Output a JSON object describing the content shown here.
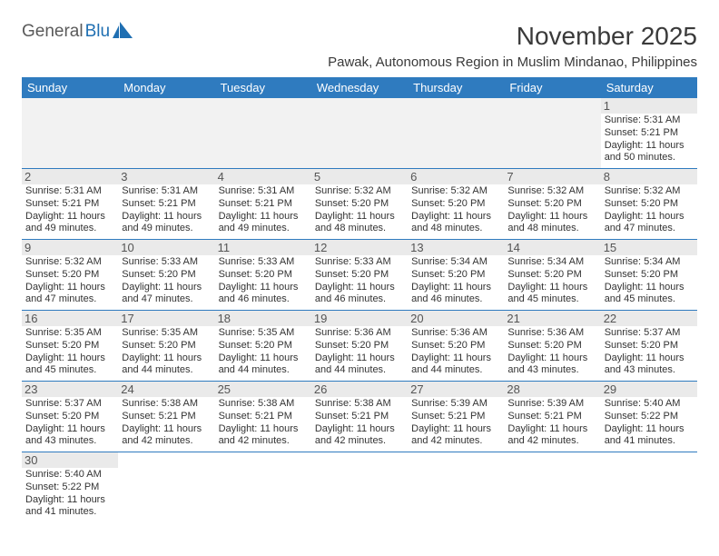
{
  "logo": {
    "part1": "General",
    "part2": "Blu"
  },
  "header": {
    "title": "November 2025",
    "subtitle": "Pawak, Autonomous Region in Muslim Mindanao, Philippines"
  },
  "day_headers": [
    "Sunday",
    "Monday",
    "Tuesday",
    "Wednesday",
    "Thursday",
    "Friday",
    "Saturday"
  ],
  "colors": {
    "header_bg": "#2f7bbf",
    "header_text": "#ffffff",
    "daynum_bg": "#eaeaea",
    "blank_bg": "#f2f2f2",
    "border": "#2f7bbf",
    "title_color": "#3a3a3a",
    "text_color": "#333333"
  },
  "weeks": [
    [
      null,
      null,
      null,
      null,
      null,
      null,
      {
        "n": "1",
        "sunrise": "Sunrise: 5:31 AM",
        "sunset": "Sunset: 5:21 PM",
        "daylight": "Daylight: 11 hours and 50 minutes."
      }
    ],
    [
      {
        "n": "2",
        "sunrise": "Sunrise: 5:31 AM",
        "sunset": "Sunset: 5:21 PM",
        "daylight": "Daylight: 11 hours and 49 minutes."
      },
      {
        "n": "3",
        "sunrise": "Sunrise: 5:31 AM",
        "sunset": "Sunset: 5:21 PM",
        "daylight": "Daylight: 11 hours and 49 minutes."
      },
      {
        "n": "4",
        "sunrise": "Sunrise: 5:31 AM",
        "sunset": "Sunset: 5:21 PM",
        "daylight": "Daylight: 11 hours and 49 minutes."
      },
      {
        "n": "5",
        "sunrise": "Sunrise: 5:32 AM",
        "sunset": "Sunset: 5:20 PM",
        "daylight": "Daylight: 11 hours and 48 minutes."
      },
      {
        "n": "6",
        "sunrise": "Sunrise: 5:32 AM",
        "sunset": "Sunset: 5:20 PM",
        "daylight": "Daylight: 11 hours and 48 minutes."
      },
      {
        "n": "7",
        "sunrise": "Sunrise: 5:32 AM",
        "sunset": "Sunset: 5:20 PM",
        "daylight": "Daylight: 11 hours and 48 minutes."
      },
      {
        "n": "8",
        "sunrise": "Sunrise: 5:32 AM",
        "sunset": "Sunset: 5:20 PM",
        "daylight": "Daylight: 11 hours and 47 minutes."
      }
    ],
    [
      {
        "n": "9",
        "sunrise": "Sunrise: 5:32 AM",
        "sunset": "Sunset: 5:20 PM",
        "daylight": "Daylight: 11 hours and 47 minutes."
      },
      {
        "n": "10",
        "sunrise": "Sunrise: 5:33 AM",
        "sunset": "Sunset: 5:20 PM",
        "daylight": "Daylight: 11 hours and 47 minutes."
      },
      {
        "n": "11",
        "sunrise": "Sunrise: 5:33 AM",
        "sunset": "Sunset: 5:20 PM",
        "daylight": "Daylight: 11 hours and 46 minutes."
      },
      {
        "n": "12",
        "sunrise": "Sunrise: 5:33 AM",
        "sunset": "Sunset: 5:20 PM",
        "daylight": "Daylight: 11 hours and 46 minutes."
      },
      {
        "n": "13",
        "sunrise": "Sunrise: 5:34 AM",
        "sunset": "Sunset: 5:20 PM",
        "daylight": "Daylight: 11 hours and 46 minutes."
      },
      {
        "n": "14",
        "sunrise": "Sunrise: 5:34 AM",
        "sunset": "Sunset: 5:20 PM",
        "daylight": "Daylight: 11 hours and 45 minutes."
      },
      {
        "n": "15",
        "sunrise": "Sunrise: 5:34 AM",
        "sunset": "Sunset: 5:20 PM",
        "daylight": "Daylight: 11 hours and 45 minutes."
      }
    ],
    [
      {
        "n": "16",
        "sunrise": "Sunrise: 5:35 AM",
        "sunset": "Sunset: 5:20 PM",
        "daylight": "Daylight: 11 hours and 45 minutes."
      },
      {
        "n": "17",
        "sunrise": "Sunrise: 5:35 AM",
        "sunset": "Sunset: 5:20 PM",
        "daylight": "Daylight: 11 hours and 44 minutes."
      },
      {
        "n": "18",
        "sunrise": "Sunrise: 5:35 AM",
        "sunset": "Sunset: 5:20 PM",
        "daylight": "Daylight: 11 hours and 44 minutes."
      },
      {
        "n": "19",
        "sunrise": "Sunrise: 5:36 AM",
        "sunset": "Sunset: 5:20 PM",
        "daylight": "Daylight: 11 hours and 44 minutes."
      },
      {
        "n": "20",
        "sunrise": "Sunrise: 5:36 AM",
        "sunset": "Sunset: 5:20 PM",
        "daylight": "Daylight: 11 hours and 44 minutes."
      },
      {
        "n": "21",
        "sunrise": "Sunrise: 5:36 AM",
        "sunset": "Sunset: 5:20 PM",
        "daylight": "Daylight: 11 hours and 43 minutes."
      },
      {
        "n": "22",
        "sunrise": "Sunrise: 5:37 AM",
        "sunset": "Sunset: 5:20 PM",
        "daylight": "Daylight: 11 hours and 43 minutes."
      }
    ],
    [
      {
        "n": "23",
        "sunrise": "Sunrise: 5:37 AM",
        "sunset": "Sunset: 5:20 PM",
        "daylight": "Daylight: 11 hours and 43 minutes."
      },
      {
        "n": "24",
        "sunrise": "Sunrise: 5:38 AM",
        "sunset": "Sunset: 5:21 PM",
        "daylight": "Daylight: 11 hours and 42 minutes."
      },
      {
        "n": "25",
        "sunrise": "Sunrise: 5:38 AM",
        "sunset": "Sunset: 5:21 PM",
        "daylight": "Daylight: 11 hours and 42 minutes."
      },
      {
        "n": "26",
        "sunrise": "Sunrise: 5:38 AM",
        "sunset": "Sunset: 5:21 PM",
        "daylight": "Daylight: 11 hours and 42 minutes."
      },
      {
        "n": "27",
        "sunrise": "Sunrise: 5:39 AM",
        "sunset": "Sunset: 5:21 PM",
        "daylight": "Daylight: 11 hours and 42 minutes."
      },
      {
        "n": "28",
        "sunrise": "Sunrise: 5:39 AM",
        "sunset": "Sunset: 5:21 PM",
        "daylight": "Daylight: 11 hours and 42 minutes."
      },
      {
        "n": "29",
        "sunrise": "Sunrise: 5:40 AM",
        "sunset": "Sunset: 5:22 PM",
        "daylight": "Daylight: 11 hours and 41 minutes."
      }
    ],
    [
      {
        "n": "30",
        "sunrise": "Sunrise: 5:40 AM",
        "sunset": "Sunset: 5:22 PM",
        "daylight": "Daylight: 11 hours and 41 minutes."
      },
      null,
      null,
      null,
      null,
      null,
      null
    ]
  ]
}
